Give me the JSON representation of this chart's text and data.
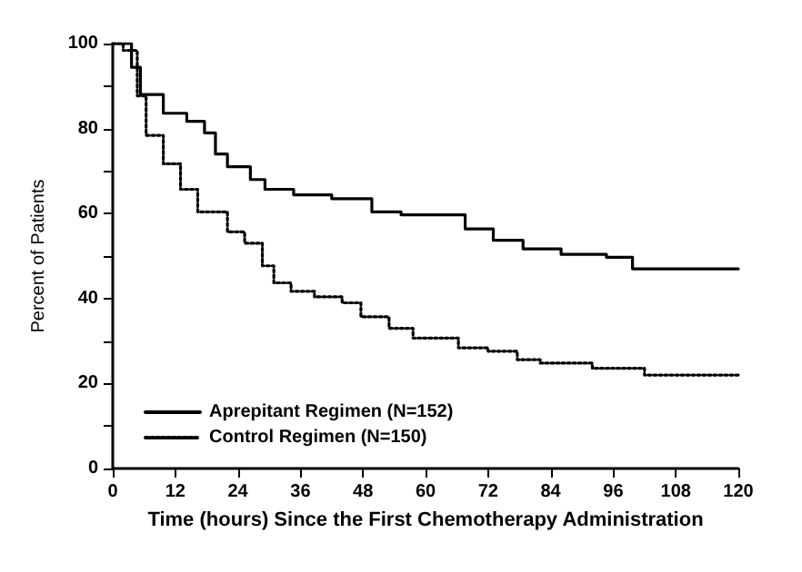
{
  "chart_data": {
    "type": "step",
    "xlabel": "Time (hours) Since the First Chemotherapy Administration",
    "ylabel": "Percent of Patients",
    "xlim": [
      0,
      120
    ],
    "xticks": [
      0,
      12,
      24,
      36,
      48,
      60,
      72,
      84,
      96,
      108,
      120
    ],
    "ylim": [
      0,
      100
    ],
    "yticks": [
      0,
      {
        "value": 10,
        "label": null
      },
      20,
      {
        "value": 30,
        "label": null
      },
      40,
      {
        "value": 50,
        "label": null
      },
      60,
      {
        "value": 70,
        "label": null
      },
      80,
      {
        "value": 90,
        "label": null
      },
      100
    ],
    "grid": false,
    "legend": "bottom left",
    "marker": "none",
    "series": [
      {
        "name": "Aprepitant Regimen (N=152)",
        "color": "#000000",
        "line_style": "solid",
        "x": [
          0,
          3.6,
          5.3,
          9.7,
          14.2,
          17.6,
          19.7,
          22,
          26.4,
          29.2,
          34.7,
          42,
          49.7,
          55.3,
          64.8,
          67.6,
          73,
          78.7,
          86,
          94.7,
          99.7,
          120
        ],
        "values": [
          100,
          94.4,
          88,
          83.6,
          81.7,
          79,
          74,
          71,
          68,
          65.7,
          64.4,
          63.5,
          60.4,
          59.7,
          59.7,
          56.4,
          53.7,
          51.7,
          50.4,
          49.7,
          47,
          47
        ]
      },
      {
        "name": "Control Regimen (N=150)",
        "color": "#000000",
        "line_style": "dotted",
        "x": [
          0,
          2,
          4.7,
          6.4,
          9.7,
          13,
          16.3,
          22,
          25.3,
          28.7,
          30.9,
          34.2,
          38.7,
          44,
          47.6,
          53,
          57.6,
          66.3,
          72,
          77.6,
          82,
          92,
          102,
          120
        ],
        "values": [
          100,
          98.4,
          87.7,
          78.4,
          71.7,
          65.7,
          60.4,
          55.7,
          53,
          47.7,
          43.7,
          41.7,
          40.4,
          39,
          35.7,
          33,
          30.7,
          28.4,
          27.6,
          25.6,
          24.8,
          23.6,
          22,
          22
        ]
      }
    ]
  }
}
